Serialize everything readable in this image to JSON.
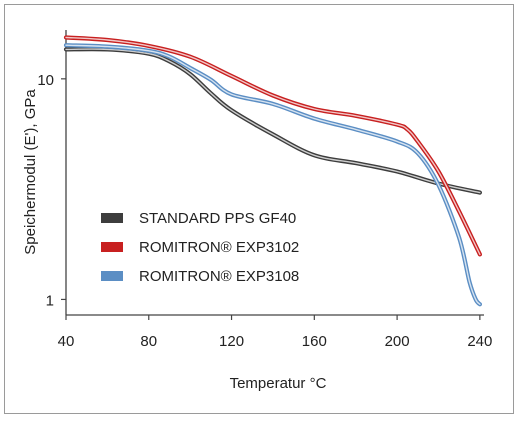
{
  "chart_data": {
    "type": "line",
    "title": "",
    "xlabel": "Temperatur °C",
    "ylabel": "Speichermodul (E'), GPa",
    "x_ticks": [
      "40",
      "80",
      "120",
      "160",
      "200",
      "240"
    ],
    "y_ticks": [
      "1",
      "10"
    ],
    "xlim": [
      40,
      242
    ],
    "ylim": [
      0.85,
      17
    ],
    "y_scale": "log",
    "legend_position": "center-left",
    "series": [
      {
        "name": "STANDARD PPS GF40",
        "color": "#3d3d3d",
        "x": [
          40,
          60,
          80,
          90,
          100,
          110,
          120,
          140,
          160,
          180,
          200,
          220,
          240
        ],
        "y": [
          13.6,
          13.6,
          13.0,
          12.0,
          10.5,
          8.6,
          7.2,
          5.6,
          4.5,
          4.15,
          3.8,
          3.35,
          3.05
        ]
      },
      {
        "name": "ROMITRON® EXP3102",
        "color": "#c82020",
        "x": [
          40,
          60,
          80,
          100,
          120,
          140,
          160,
          180,
          200,
          205,
          210,
          220,
          230,
          240
        ],
        "y": [
          15.4,
          15.0,
          14.1,
          12.6,
          10.3,
          8.4,
          7.3,
          6.8,
          6.2,
          5.9,
          5.2,
          3.8,
          2.5,
          1.6
        ]
      },
      {
        "name": "ROMITRON® EXP3108",
        "color": "#5b8ec4",
        "x": [
          40,
          60,
          80,
          90,
          100,
          110,
          120,
          140,
          160,
          180,
          200,
          210,
          220,
          230,
          235,
          238,
          240
        ],
        "y": [
          14.2,
          14.0,
          13.4,
          12.6,
          11.2,
          9.9,
          8.5,
          7.7,
          6.6,
          5.9,
          5.2,
          4.6,
          3.3,
          1.9,
          1.2,
          1.0,
          0.95
        ]
      }
    ]
  }
}
